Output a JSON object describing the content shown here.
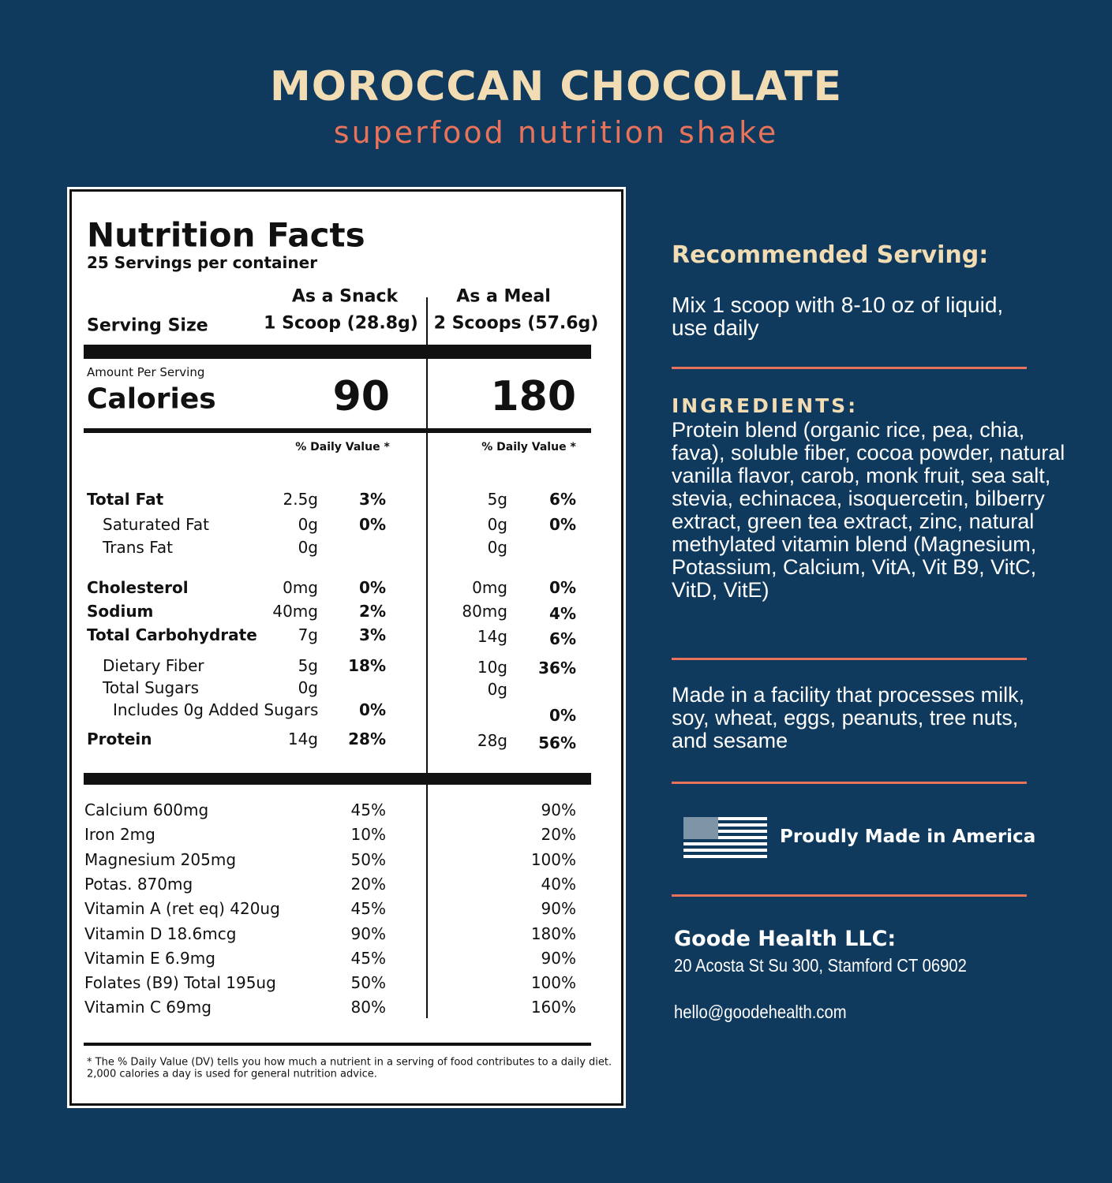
{
  "header": {
    "title": "MOROCCAN CHOCOLATE",
    "subtitle": "superfood nutrition shake"
  },
  "label": {
    "title": "Nutrition Facts",
    "servings": "25 Servings per container",
    "serving_size": "Serving Size",
    "amount_per_serving": "Amount Per Serving",
    "calories_label": "Calories",
    "columns": [
      {
        "name": "As a Snack",
        "size": "1 Scoop (28.8g)",
        "calories": "90",
        "dv_header": "% Daily Value *"
      },
      {
        "name": "As a Meal",
        "size": "2 Scoops (57.6g)",
        "calories": "180",
        "dv_header": "% Daily Value *"
      }
    ],
    "nutrients": [
      {
        "name": "Total Fat",
        "snack": [
          "2.5g",
          "3%"
        ],
        "meal": [
          "5g",
          "6%"
        ]
      },
      {
        "name": "Saturated Fat",
        "snack": [
          "0g",
          "0%"
        ],
        "meal": [
          "0g",
          "0%"
        ]
      },
      {
        "name": "Trans Fat",
        "snack": [
          "0g",
          null
        ],
        "meal": [
          "0g",
          null
        ]
      },
      {
        "name": "Cholesterol",
        "snack": [
          "0mg",
          "0%"
        ],
        "meal": [
          "0mg",
          "0%"
        ]
      },
      {
        "name": "Sodium",
        "snack": [
          "40mg",
          "2%"
        ],
        "meal": [
          "80mg",
          "4%"
        ]
      },
      {
        "name": "Total Carbohydrate",
        "snack": [
          "7g",
          "3%"
        ],
        "meal": [
          "14g",
          "6%"
        ]
      },
      {
        "name": "Dietary Fiber",
        "snack": [
          "5g",
          "18%"
        ],
        "meal": [
          "10g",
          "36%"
        ]
      },
      {
        "name": "Total Sugars",
        "snack": [
          "0g",
          null
        ],
        "meal": [
          "0g",
          null
        ]
      },
      {
        "name": "Includes 0g Added Sugars",
        "snack": [
          null,
          "0%"
        ],
        "meal": [
          null,
          "0%"
        ]
      },
      {
        "name": "Protein",
        "snack": [
          "14g",
          "28%"
        ],
        "meal": [
          "28g",
          "56%"
        ]
      }
    ],
    "vitamins": [
      {
        "name": "Calcium 600mg",
        "snack": "45%",
        "meal": "90%"
      },
      {
        "name": "Iron 2mg",
        "snack": "10%",
        "meal": "20%"
      },
      {
        "name": "Magnesium 205mg",
        "snack": "50%",
        "meal": "100%"
      },
      {
        "name": "Potas. 870mg",
        "snack": "20%",
        "meal": "40%"
      },
      {
        "name": "Vitamin A (ret eq) 420ug",
        "snack": "45%",
        "meal": "90%"
      },
      {
        "name": "Vitamin D 18.6mcg",
        "snack": "90%",
        "meal": "180%"
      },
      {
        "name": "Vitamin E 6.9mg",
        "snack": "45%",
        "meal": "90%"
      },
      {
        "name": "Folates (B9) Total 195ug",
        "snack": "50%",
        "meal": "100%"
      },
      {
        "name": "Vitamin C 69mg",
        "snack": "80%",
        "meal": "160%"
      }
    ],
    "footnote": [
      "* The % Daily Value (DV) tells you how much a nutrient in a serving of food contributes to a daily diet.",
      "2,000 calories a day is used for general nutrition advice."
    ]
  },
  "side": {
    "recommended_title": "Recommended Serving:",
    "recommended_text": "Mix 1 scoop with 8-10 oz of liquid, use daily",
    "ingredients_title": "INGREDIENTS:",
    "ingredients_text": "Protein blend (organic rice, pea, chia, fava), soluble fiber, cocoa powder, natural vanilla flavor, carob, monk fruit, sea salt, stevia, echinacea, isoquercetin, bilberry extract, green tea extract, zinc, natural methylated vitamin blend (Magnesium, Potassium, Calcium, VitA, Vit B9, VitC, VitD, VitE)",
    "allergen": "Made in a facility that processes milk, soy, wheat, eggs, peanuts, tree nuts, and sesame",
    "made_in": "Proudly Made in America",
    "company": "Goode Health LLC:",
    "address": "20 Acosta St Su 300, Stamford CT 06902",
    "email": "hello@goodehealth.com"
  }
}
